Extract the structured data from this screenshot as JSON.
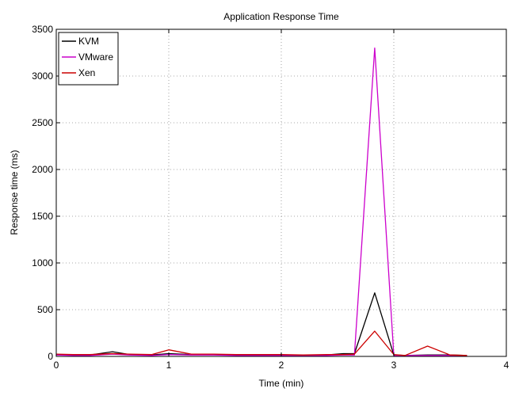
{
  "chart_data": {
    "type": "line",
    "title": "Application Response Time",
    "xlabel": "Time (min)",
    "ylabel": "Response time (ms)",
    "xlim": [
      0,
      4
    ],
    "ylim": [
      0,
      3500
    ],
    "xticks": [
      0,
      1,
      2,
      3,
      4
    ],
    "yticks": [
      0,
      500,
      1000,
      1500,
      2000,
      2500,
      3000,
      3500
    ],
    "grid": true,
    "legend_position": "top-left",
    "series": [
      {
        "name": "KVM",
        "color": "#000000",
        "x": [
          0,
          0.15,
          0.3,
          0.5,
          0.65,
          0.85,
          1.0,
          1.2,
          1.4,
          1.6,
          1.8,
          2.0,
          2.2,
          2.4,
          2.55,
          2.65,
          2.83,
          3.0,
          3.1,
          3.3,
          3.5,
          3.65
        ],
        "y": [
          20,
          15,
          15,
          50,
          20,
          15,
          30,
          20,
          20,
          15,
          15,
          15,
          10,
          15,
          30,
          30,
          680,
          15,
          10,
          15,
          15,
          10
        ]
      },
      {
        "name": "VMware",
        "color": "#cc00cc",
        "x": [
          0,
          0.15,
          0.3,
          0.5,
          0.65,
          0.85,
          1.0,
          1.2,
          1.4,
          1.6,
          1.8,
          2.0,
          2.2,
          2.4,
          2.55,
          2.65,
          2.83,
          3.0,
          3.1,
          3.3,
          3.5,
          3.65
        ],
        "y": [
          15,
          10,
          10,
          25,
          15,
          10,
          20,
          15,
          15,
          10,
          10,
          10,
          10,
          10,
          15,
          15,
          3300,
          10,
          10,
          10,
          10,
          10
        ]
      },
      {
        "name": "Xen",
        "color": "#cc0000",
        "x": [
          0,
          0.15,
          0.3,
          0.5,
          0.65,
          0.85,
          1.0,
          1.2,
          1.4,
          1.6,
          1.8,
          2.0,
          2.2,
          2.4,
          2.55,
          2.65,
          2.83,
          3.0,
          3.1,
          3.3,
          3.5,
          3.65
        ],
        "y": [
          25,
          20,
          20,
          30,
          25,
          20,
          70,
          25,
          25,
          20,
          20,
          20,
          15,
          20,
          20,
          25,
          270,
          20,
          10,
          110,
          15,
          10
        ]
      }
    ]
  }
}
